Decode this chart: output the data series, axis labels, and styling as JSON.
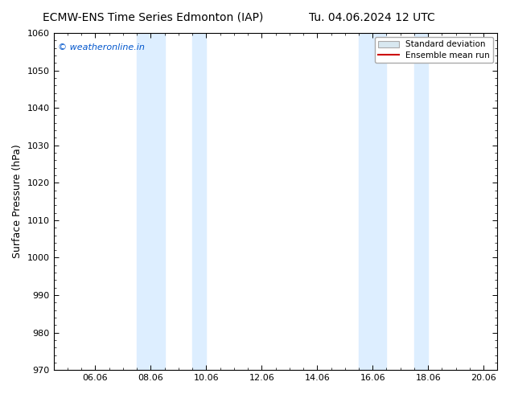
{
  "title_left": "ECMW-ENS Time Series Edmonton (IAP)",
  "title_right": "Tu. 04.06.2024 12 UTC",
  "ylabel": "Surface Pressure (hPa)",
  "ylim": [
    970,
    1060
  ],
  "yticks": [
    970,
    980,
    990,
    1000,
    1010,
    1020,
    1030,
    1040,
    1050,
    1060
  ],
  "xtick_labels": [
    "06.06",
    "08.06",
    "10.06",
    "12.06",
    "14.06",
    "16.06",
    "18.06",
    "20.06"
  ],
  "xtick_positions": [
    2,
    4,
    6,
    8,
    10,
    12,
    14,
    16
  ],
  "xlim": [
    0.5,
    16.5
  ],
  "shaded_bands": [
    {
      "x_start": 3.5,
      "x_end": 4.5,
      "color": "#ddeeff"
    },
    {
      "x_start": 5.5,
      "x_end": 6.0,
      "color": "#ddeeff"
    },
    {
      "x_start": 11.5,
      "x_end": 12.5,
      "color": "#ddeeff"
    },
    {
      "x_start": 13.5,
      "x_end": 14.0,
      "color": "#ddeeff"
    }
  ],
  "watermark": "© weatheronline.in",
  "watermark_color": "#0055cc",
  "background_color": "#ffffff",
  "legend_std_color": "#d8e8f0",
  "legend_std_edge": "#aaaaaa",
  "legend_mean_color": "#cc0000",
  "title_fontsize": 10,
  "axis_fontsize": 9,
  "tick_fontsize": 8
}
